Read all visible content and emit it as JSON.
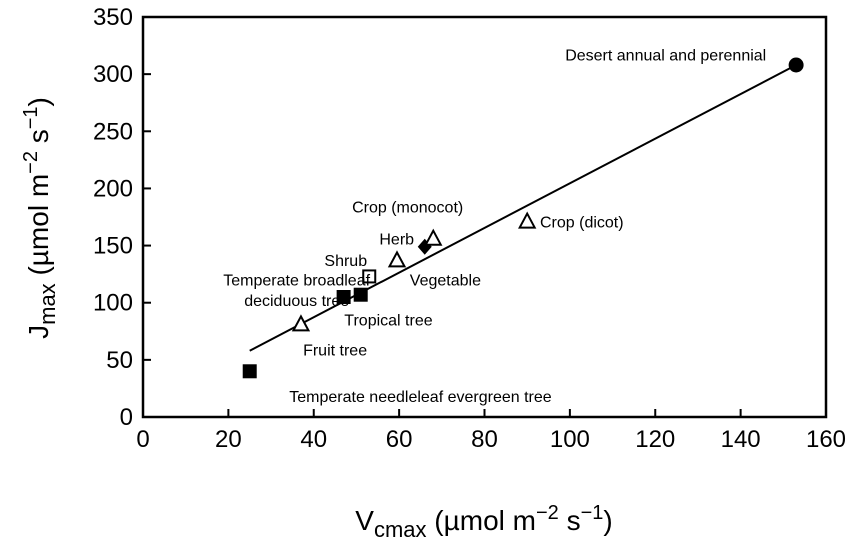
{
  "chart_data": {
    "type": "scatter",
    "xlabel": {
      "main": "V",
      "sub": "cmax",
      "rest": " (µmol m",
      "sup1": "−2",
      "mid": " s",
      "sup2": "−1",
      "end": ")"
    },
    "ylabel": {
      "main": "J",
      "sub": "max",
      "rest": " (µmol m",
      "sup1": "−2",
      "mid": " s",
      "sup2": "−1",
      "end": ")"
    },
    "xlim": [
      0,
      160
    ],
    "ylim": [
      0,
      350
    ],
    "xticks": [
      "0",
      "20",
      "40",
      "60",
      "80",
      "100",
      "120",
      "140",
      "160"
    ],
    "yticks": [
      "0",
      "50",
      "100",
      "150",
      "200",
      "250",
      "300",
      "350"
    ],
    "grid": false,
    "points": [
      {
        "x": 25,
        "y": 40,
        "marker": "filled-square",
        "label": "Temperate needleleaf evergreen tree"
      },
      {
        "x": 37,
        "y": 81,
        "marker": "open-triangle",
        "label": "Fruit tree"
      },
      {
        "x": 47,
        "y": 105,
        "marker": "filled-square",
        "label": "Temperate broadleaf deciduous tree"
      },
      {
        "x": 51,
        "y": 107,
        "marker": "filled-square",
        "label": "Tropical tree"
      },
      {
        "x": 53,
        "y": 123,
        "marker": "open-square",
        "label": "Shrub"
      },
      {
        "x": 59.5,
        "y": 137,
        "marker": "open-triangle",
        "label": "Vegetable"
      },
      {
        "x": 66,
        "y": 149,
        "marker": "filled-diamond",
        "label": "Herb"
      },
      {
        "x": 68,
        "y": 156,
        "marker": "open-triangle",
        "label": "Crop (monocot)"
      },
      {
        "x": 90,
        "y": 171,
        "marker": "open-triangle",
        "label": "Crop (dicot)"
      },
      {
        "x": 153,
        "y": 308,
        "marker": "filled-circle",
        "label": "Desert annual and perennial"
      }
    ],
    "fit_line": {
      "x": [
        25,
        153
      ],
      "y": [
        58,
        308
      ]
    },
    "annotations": [
      {
        "text": "Desert annual and perennial",
        "x": 146,
        "y": 312,
        "anchor": "end"
      },
      {
        "text": "Crop (monocot)",
        "x": 62,
        "y": 179,
        "anchor": "middle"
      },
      {
        "text": "Crop (dicot)",
        "x": 93,
        "y": 166,
        "anchor": "start"
      },
      {
        "text": "Herb",
        "x": 63.5,
        "y": 151,
        "anchor": "end"
      },
      {
        "text": "Shrub",
        "x": 52.5,
        "y": 132,
        "anchor": "end"
      },
      {
        "text": "Vegetable",
        "x": 62.5,
        "y": 115,
        "anchor": "start"
      },
      {
        "text": "Temperate broadleaf",
        "x": 36,
        "y": 115,
        "anchor": "middle"
      },
      {
        "text": "deciduous tree",
        "x": 36,
        "y": 97,
        "anchor": "middle"
      },
      {
        "text": "Tropical tree",
        "x": 57.5,
        "y": 80,
        "anchor": "middle"
      },
      {
        "text": "Fruit tree",
        "x": 45,
        "y": 54,
        "anchor": "middle"
      },
      {
        "text": "Temperate needleleaf evergreen tree",
        "x": 65,
        "y": 13,
        "anchor": "middle"
      }
    ]
  }
}
